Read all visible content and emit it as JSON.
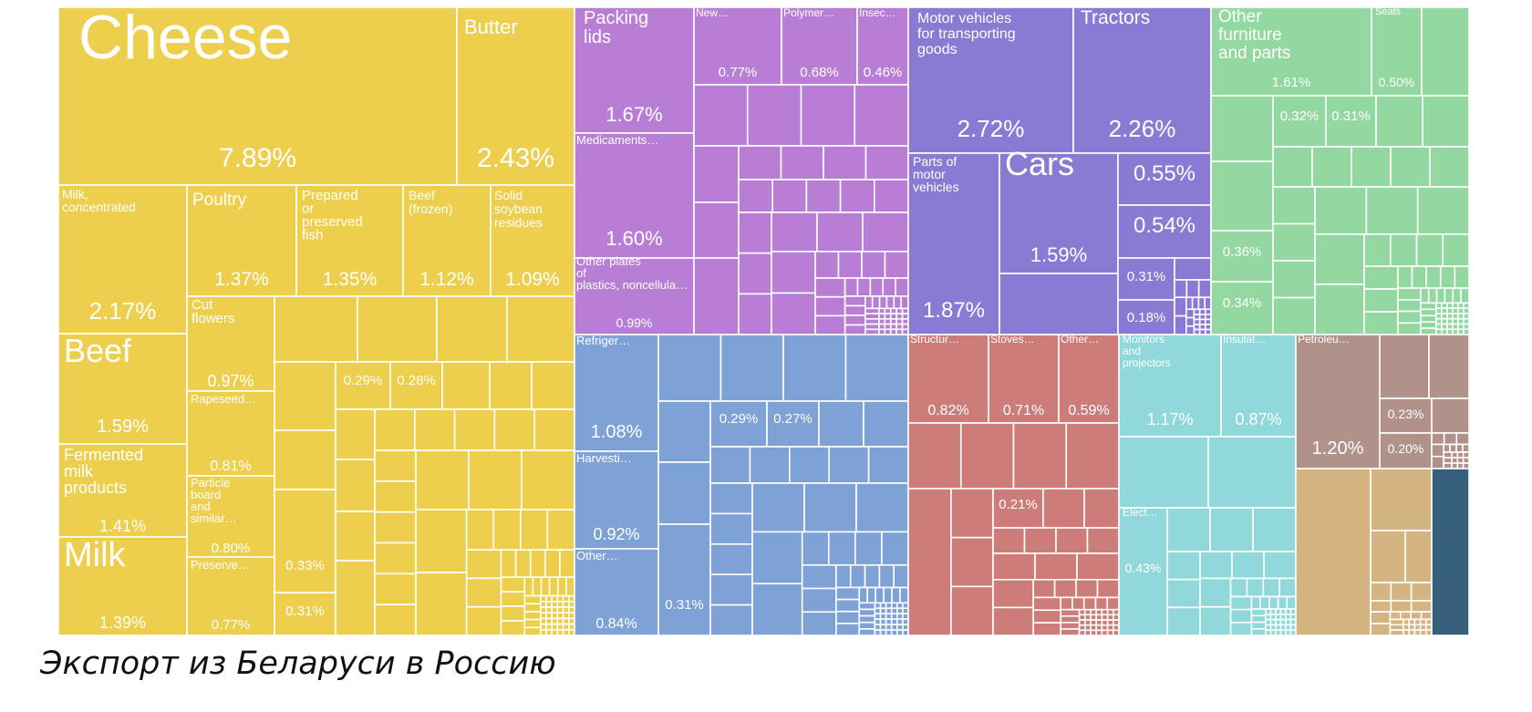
{
  "caption": "Экспорт из Беларуси в Россию",
  "colors": {
    "food": "#EDCF4D",
    "plastics": "#B87ED6",
    "vehicles": "#8A7AD4",
    "furniture": "#93D8A0",
    "machinery": "#7FA2D6",
    "metals": "#CC7D79",
    "electronics": "#90D8DA",
    "minerals": "#B0928B",
    "textiles": "#D4B480",
    "other": "#355F7A",
    "border": "#ffffff"
  },
  "chart_data": {
    "type": "treemap",
    "title": "Экспорт из Беларуси в Россию",
    "value_unit": "% of exports",
    "labeled_tiles": [
      {
        "label": "Cheese",
        "value": 7.89,
        "group": "food"
      },
      {
        "label": "Butter",
        "value": 2.43,
        "group": "food"
      },
      {
        "label": "Milk, concentrated",
        "value": 2.17,
        "group": "food"
      },
      {
        "label": "Poultry",
        "value": 1.37,
        "group": "food"
      },
      {
        "label": "Prepared or preserved fish",
        "value": 1.35,
        "group": "food"
      },
      {
        "label": "Beef (frozen)",
        "value": 1.12,
        "group": "food"
      },
      {
        "label": "Solid soybean residues",
        "value": 1.09,
        "group": "food"
      },
      {
        "label": "Beef",
        "value": 1.59,
        "group": "food"
      },
      {
        "label": "Cut flowers",
        "value": 0.97,
        "group": "food"
      },
      {
        "label": "Rapeseed…",
        "value": 0.81,
        "group": "food"
      },
      {
        "label": "Fermented milk products",
        "value": 1.41,
        "group": "food"
      },
      {
        "label": "Particle board and similar…",
        "value": 0.8,
        "group": "food"
      },
      {
        "label": "Milk",
        "value": 1.39,
        "group": "food"
      },
      {
        "label": "Preserve…",
        "value": 0.77,
        "group": "food"
      },
      {
        "label": "Packing lids",
        "value": 1.67,
        "group": "plastics"
      },
      {
        "label": "New…",
        "value": 0.77,
        "group": "plastics"
      },
      {
        "label": "Polymer…",
        "value": 0.68,
        "group": "plastics"
      },
      {
        "label": "Insec…",
        "value": 0.46,
        "group": "plastics"
      },
      {
        "label": "Medicaments…",
        "value": 1.6,
        "group": "plastics"
      },
      {
        "label": "Other plates of plastics, noncellula…",
        "value": 0.99,
        "group": "plastics"
      },
      {
        "label": "Motor vehicles for transporting goods",
        "value": 2.72,
        "group": "vehicles"
      },
      {
        "label": "Tractors",
        "value": 2.26,
        "group": "vehicles"
      },
      {
        "label": "Parts of motor vehicles",
        "value": 1.87,
        "group": "vehicles"
      },
      {
        "label": "Cars",
        "value": 1.59,
        "group": "vehicles"
      },
      {
        "label": "Other furniture and parts",
        "value": 1.61,
        "group": "furniture"
      },
      {
        "label": "Seats",
        "value": 0.5,
        "group": "furniture"
      },
      {
        "label": "Refriger…",
        "value": 1.08,
        "group": "machinery"
      },
      {
        "label": "Harvesti…",
        "value": 0.92,
        "group": "machinery"
      },
      {
        "label": "Other…",
        "value": 0.84,
        "group": "machinery"
      },
      {
        "label": "Structur…",
        "value": 0.82,
        "group": "metals"
      },
      {
        "label": "Stoves…",
        "value": 0.71,
        "group": "metals"
      },
      {
        "label": "Other…",
        "value": 0.59,
        "group": "metals"
      },
      {
        "label": "Monitors and projectors",
        "value": 1.17,
        "group": "electronics"
      },
      {
        "label": "Insulat…",
        "value": 0.87,
        "group": "electronics"
      },
      {
        "label": "Elect…",
        "value": 0.43,
        "group": "electronics"
      },
      {
        "label": "Petroleu…",
        "value": 1.2,
        "group": "minerals"
      }
    ],
    "unnamed_values": [
      0.29,
      0.28,
      0.33,
      0.31,
      0.55,
      0.54,
      0.31,
      0.18,
      0.32,
      0.31,
      0.36,
      0.34,
      0.29,
      0.27,
      0.31,
      0.21,
      0.23,
      0.2
    ]
  }
}
